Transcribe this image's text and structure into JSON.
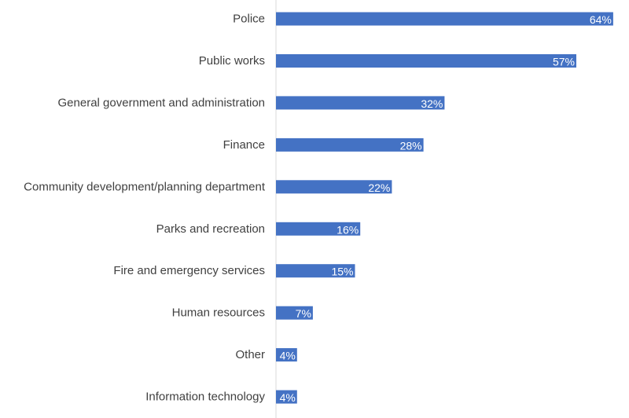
{
  "chart_data": {
    "type": "bar",
    "orientation": "horizontal",
    "categories": [
      "Police",
      "Public works",
      "General government and administration",
      "Finance",
      "Community development/planning department",
      "Parks and recreation",
      "Fire and emergency services",
      "Human resources",
      "Other",
      "Information technology"
    ],
    "values": [
      64,
      57,
      32,
      28,
      22,
      16,
      15,
      7,
      4,
      4
    ],
    "data_labels": [
      "64%",
      "57%",
      "32%",
      "28%",
      "22%",
      "16%",
      "15%",
      "7%",
      "4%",
      "4%"
    ],
    "value_unit": "%",
    "xlim": [
      0,
      67
    ],
    "grid": false,
    "legend": "none",
    "title": "",
    "xlabel": "",
    "ylabel": ""
  },
  "colors": {
    "bar": "#4472c4",
    "axis": "#d9d9d9",
    "category_text": "#404040",
    "value_text": "#ffffff"
  }
}
